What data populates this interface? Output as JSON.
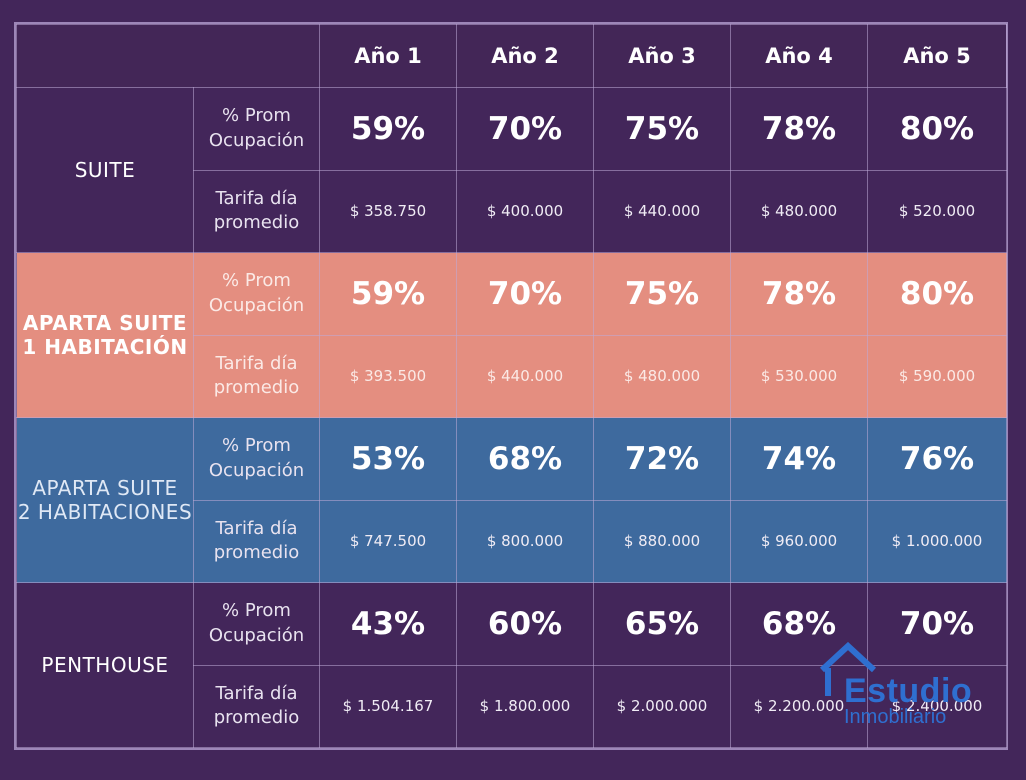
{
  "years": [
    "Año 1",
    "Año 2",
    "Año 3",
    "Año 4",
    "Año 5"
  ],
  "groups": [
    {
      "name": "SUITE",
      "occupancy_label": [
        "% Prom",
        "Ocupación"
      ],
      "rate_label": [
        "Tarifa día",
        "promedio"
      ],
      "occupancy": [
        "59%",
        "70%",
        "75%",
        "78%",
        "80%"
      ],
      "rates": [
        "$ 358.750",
        "$ 400.000",
        "$ 440.000",
        "$ 480.000",
        "$ 520.000"
      ]
    },
    {
      "name": [
        "APARTA SUITE",
        "1 HABITACIÓN"
      ],
      "occupancy_label": [
        "% Prom",
        "Ocupación"
      ],
      "rate_label": [
        "Tarifa día",
        "promedio"
      ],
      "occupancy": [
        "59%",
        "70%",
        "75%",
        "78%",
        "80%"
      ],
      "rates": [
        "$ 393.500",
        "$ 440.000",
        "$ 480.000",
        "$ 530.000",
        "$ 590.000"
      ]
    },
    {
      "name": [
        "APARTA SUITE",
        "2 HABITACIONES"
      ],
      "occupancy_label": [
        "% Prom",
        "Ocupación"
      ],
      "rate_label": [
        "Tarifa día",
        "promedio"
      ],
      "occupancy": [
        "53%",
        "68%",
        "72%",
        "74%",
        "76%"
      ],
      "rates": [
        "$ 747.500",
        "$ 800.000",
        "$ 880.000",
        "$ 960.000",
        "$ 1.000.000"
      ]
    },
    {
      "name": "PENTHOUSE",
      "occupancy_label": [
        "% Prom",
        "Ocupación"
      ],
      "rate_label": [
        "Tarifa día",
        "promedio"
      ],
      "occupancy": [
        "43%",
        "60%",
        "65%",
        "68%",
        "70%"
      ],
      "rates": [
        "$ 1.504.167",
        "$ 1.800.000",
        "$ 2.000.000",
        "$ 2.200.000",
        "$ 2.400.000"
      ]
    }
  ],
  "logo": {
    "line1": "Estudio",
    "line2": "Inmobiliario"
  },
  "colors": {
    "background": "#43265a",
    "coral": "#e48e80",
    "blue": "#3e6a9e",
    "logo": "#2f6fd0"
  }
}
